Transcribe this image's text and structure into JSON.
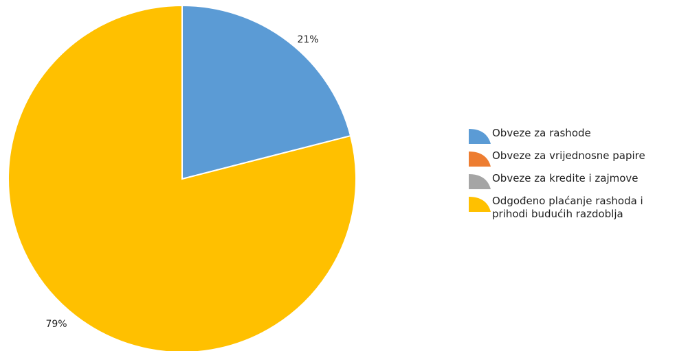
{
  "chart_data": {
    "type": "pie",
    "title": "",
    "slices": [
      {
        "label": "Obveze za rashode",
        "value": 21,
        "data_label": "21%",
        "color": "#5B9BD5"
      },
      {
        "label": "Obveze za vrijednosne papire",
        "value": 0,
        "data_label": "",
        "color": "#ED7D31"
      },
      {
        "label": "Obveze za kredite i zajmove",
        "value": 0,
        "data_label": "",
        "color": "#A5A5A5"
      },
      {
        "label": "Odgođeno plaćanje rashoda i\nprihodi budućih razdoblja",
        "value": 79,
        "data_label": "79%",
        "color": "#FFC000"
      }
    ],
    "legend_position": "right"
  }
}
